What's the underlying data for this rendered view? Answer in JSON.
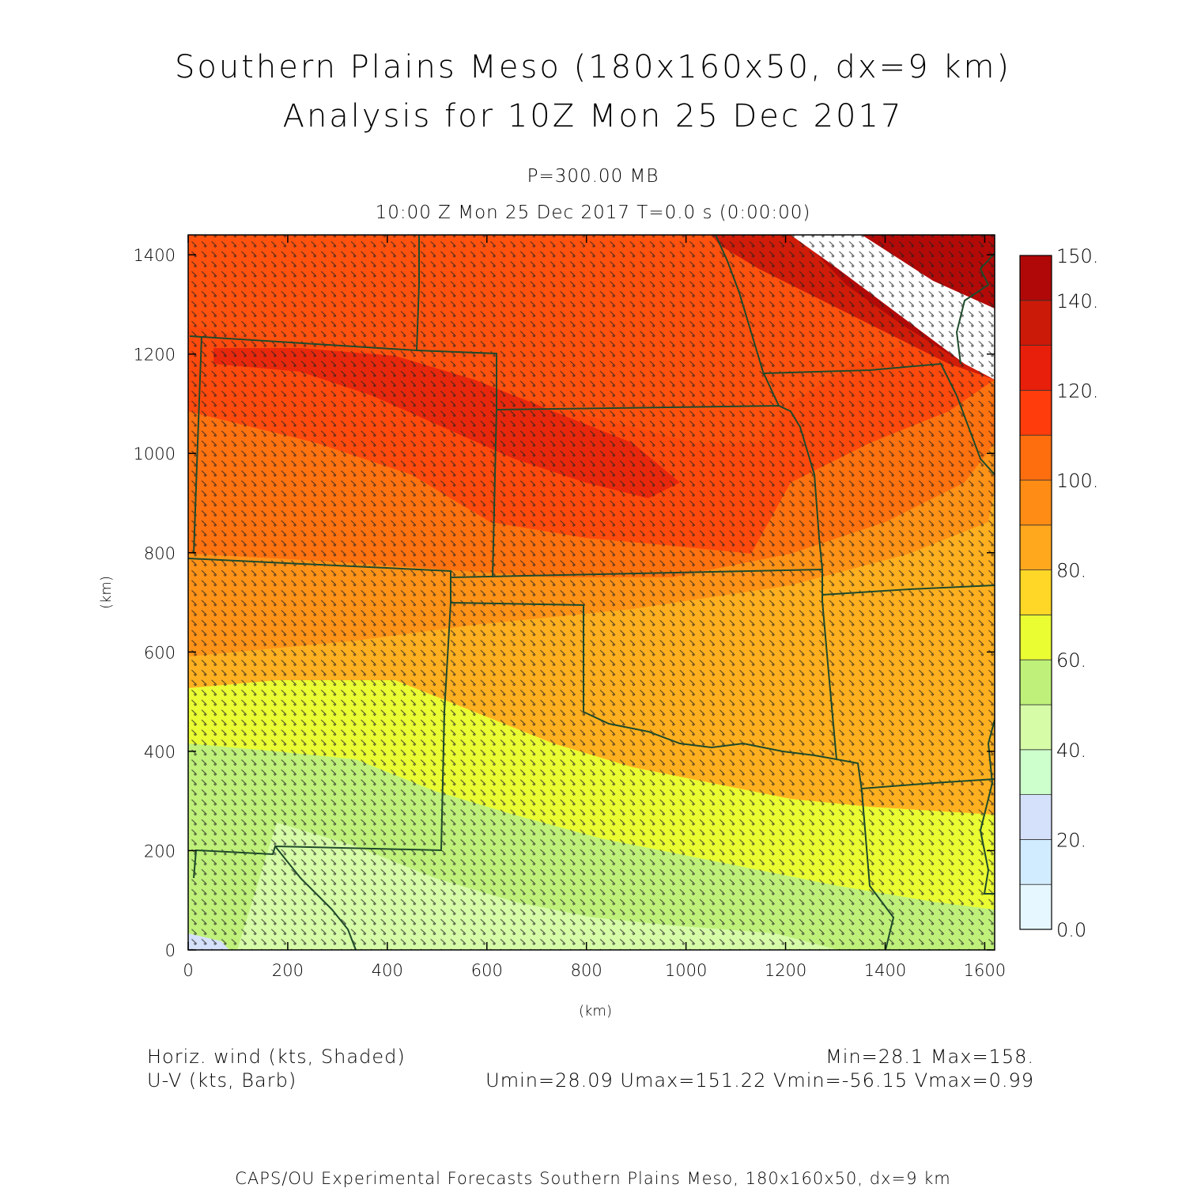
{
  "title": {
    "line1": "Southern Plains Meso (180x160x50, dx=9 km)",
    "line2": "Analysis for 10Z Mon 25 Dec 2017"
  },
  "subtitle": {
    "level": "P=300.00 MB",
    "valid": "10:00 Z Mon 25 Dec 2017    T=0.0 s (0:00:00)"
  },
  "axes": {
    "x": {
      "label": "(km)",
      "range": [
        0,
        1620
      ],
      "ticks": [
        0,
        200,
        400,
        600,
        800,
        1000,
        1200,
        1400,
        1600
      ]
    },
    "y": {
      "label": "(km)",
      "range": [
        0,
        1440
      ],
      "ticks": [
        0,
        200,
        400,
        600,
        800,
        1000,
        1200,
        1400
      ]
    }
  },
  "colorbar": {
    "levels": [
      0,
      10,
      20,
      30,
      40,
      50,
      60,
      70,
      80,
      90,
      100,
      110,
      120,
      130,
      140,
      150
    ],
    "labels": [
      "0.0",
      "20.",
      "40.",
      "60.",
      "80.",
      "100.",
      "120.",
      "140.",
      "150."
    ],
    "label_values": [
      0,
      20,
      40,
      60,
      80,
      100,
      120,
      140,
      150
    ],
    "colors": [
      "#e6f7ff",
      "#d2ecff",
      "#d5e0fb",
      "#ccffcc",
      "#d6fca8",
      "#bff17a",
      "#eafc32",
      "#ffd726",
      "#ffa81e",
      "#ff8c14",
      "#ff6e0e",
      "#ff3c0c",
      "#e81f0a",
      "#cc1a08",
      "#b00808"
    ],
    "over_color": "#ffffff"
  },
  "captions": {
    "left1": "Horiz. wind (kts, Shaded)",
    "left2": "U-V (kts, Barb)",
    "right1": "Min=28.1 Max=158.",
    "right2": "Umin=28.09 Umax=151.22 Vmin=-56.15 Vmax=0.99"
  },
  "footer": "CAPS/OU Experimental Forecasts  Southern Plains Meso, 180x160x50, dx=9 km"
}
